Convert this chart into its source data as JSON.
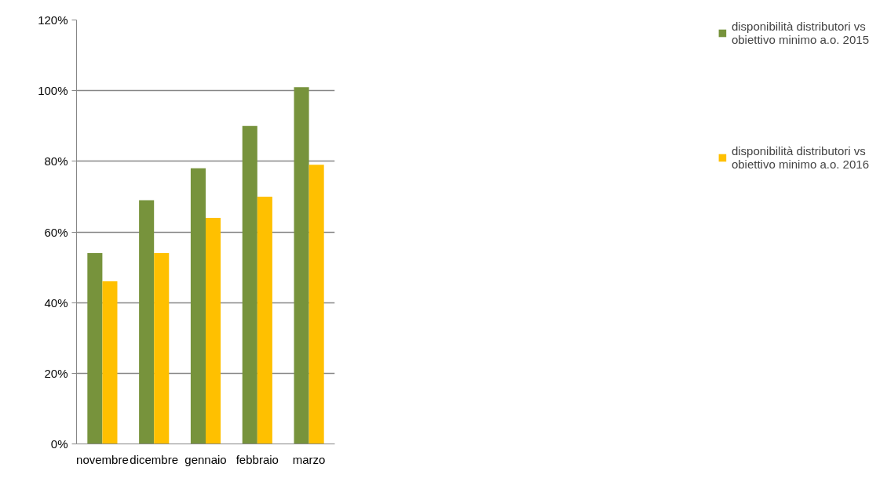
{
  "chart_data": {
    "type": "bar",
    "categories": [
      "novembre",
      "dicembre",
      "gennaio",
      "febbraio",
      "marzo"
    ],
    "series": [
      {
        "name": "disponibilità distributori vs obiettivo minimo a.o. 2015",
        "color": "#77933c",
        "values": [
          54,
          69,
          78,
          90,
          101
        ]
      },
      {
        "name": "disponibilità distributori vs obiettivo minimo a.o. 2016",
        "color": "#ffc000",
        "values": [
          46,
          54,
          64,
          70,
          79
        ]
      }
    ],
    "ylim": [
      0,
      120
    ],
    "yticks": [
      {
        "value": 0,
        "label": "0%"
      },
      {
        "value": 20,
        "label": "20%"
      },
      {
        "value": 40,
        "label": "40%"
      },
      {
        "value": 60,
        "label": "60%"
      },
      {
        "value": 80,
        "label": "80%"
      },
      {
        "value": 100,
        "label": "100%"
      },
      {
        "value": 120,
        "label": "120%"
      }
    ],
    "grid": "y",
    "legend": "right"
  }
}
